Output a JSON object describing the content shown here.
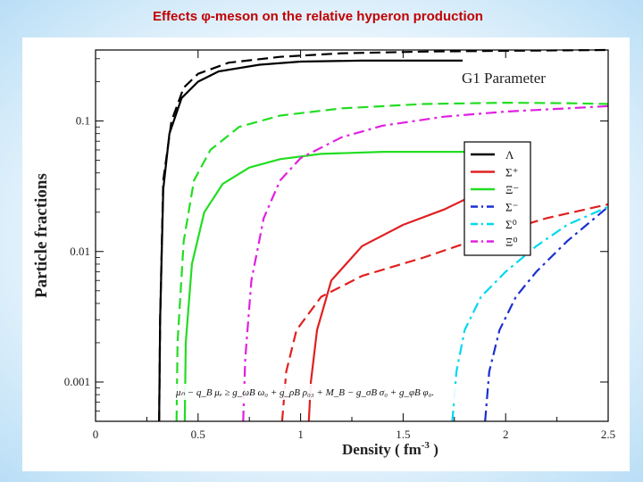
{
  "slide": {
    "title": "Effects φ-meson on the relative hyperon production"
  },
  "chart_data": {
    "type": "line",
    "ylabel": "Particle fractions",
    "xlabel_main": "Density ( fm",
    "xlabel_exp": "-3",
    "xlabel_end": " )",
    "parameter_label": "G1 Parameter",
    "equation": "μₙ − q_B μₑ ≥ g_ωB ω₀ + g_ρB ρ₀₃ + M_B − g_σB σ₀ + g_φB φ₀.",
    "xlim": [
      0,
      2.5
    ],
    "ylim": [
      0.0005,
      0.35
    ],
    "y_log": true,
    "x_ticks": [
      0,
      0.5,
      1,
      1.5,
      2,
      2.5
    ],
    "x_tick_labels": [
      "0",
      "0.5",
      "1",
      "1.5",
      "2",
      "2.5"
    ],
    "y_ticks": [
      0.001,
      0.01,
      0.1
    ],
    "y_tick_labels": [
      "0.001",
      "0.01",
      "0.1"
    ],
    "legend_position": "right",
    "grid": false,
    "series": [
      {
        "name": "Λ",
        "color": "#000000",
        "dash": "solid",
        "points": [
          [
            0.31,
            0.0005
          ],
          [
            0.315,
            0.003
          ],
          [
            0.33,
            0.03
          ],
          [
            0.36,
            0.08
          ],
          [
            0.42,
            0.15
          ],
          [
            0.5,
            0.2
          ],
          [
            0.6,
            0.24
          ],
          [
            0.8,
            0.27
          ],
          [
            1.0,
            0.285
          ],
          [
            1.3,
            0.29
          ],
          [
            1.79,
            0.29
          ]
        ]
      },
      {
        "name": "Λ",
        "color": "#000000",
        "dash": "dashed",
        "points": [
          [
            0.31,
            0.0005
          ],
          [
            0.315,
            0.003
          ],
          [
            0.33,
            0.035
          ],
          [
            0.37,
            0.1
          ],
          [
            0.43,
            0.18
          ],
          [
            0.5,
            0.23
          ],
          [
            0.65,
            0.28
          ],
          [
            0.9,
            0.31
          ],
          [
            1.2,
            0.33
          ],
          [
            1.6,
            0.34
          ],
          [
            2.0,
            0.345
          ],
          [
            2.5,
            0.35
          ]
        ]
      },
      {
        "name": "Σ⁺",
        "color": "#e02020",
        "dash": "solid",
        "points": [
          [
            1.04,
            0.0005
          ],
          [
            1.05,
            0.001
          ],
          [
            1.08,
            0.0025
          ],
          [
            1.15,
            0.006
          ],
          [
            1.3,
            0.011
          ],
          [
            1.5,
            0.016
          ],
          [
            1.7,
            0.021
          ],
          [
            1.8,
            0.025
          ]
        ]
      },
      {
        "name": "Σ⁺",
        "color": "#e02020",
        "dash": "dashed",
        "points": [
          [
            0.91,
            0.0005
          ],
          [
            0.93,
            0.0012
          ],
          [
            0.98,
            0.0025
          ],
          [
            1.1,
            0.0045
          ],
          [
            1.3,
            0.0065
          ],
          [
            1.6,
            0.009
          ],
          [
            1.9,
            0.013
          ],
          [
            2.2,
            0.018
          ],
          [
            2.5,
            0.023
          ]
        ]
      },
      {
        "name": "Ξ⁻",
        "color": "#22dd22",
        "dash": "solid",
        "points": [
          [
            0.435,
            0.0005
          ],
          [
            0.44,
            0.002
          ],
          [
            0.47,
            0.008
          ],
          [
            0.53,
            0.02
          ],
          [
            0.62,
            0.033
          ],
          [
            0.75,
            0.044
          ],
          [
            0.9,
            0.051
          ],
          [
            1.1,
            0.056
          ],
          [
            1.4,
            0.058
          ],
          [
            1.8,
            0.058
          ]
        ]
      },
      {
        "name": "Ξ⁻",
        "color": "#22dd22",
        "dash": "dashed",
        "points": [
          [
            0.395,
            0.0005
          ],
          [
            0.4,
            0.002
          ],
          [
            0.43,
            0.012
          ],
          [
            0.48,
            0.035
          ],
          [
            0.56,
            0.06
          ],
          [
            0.7,
            0.09
          ],
          [
            0.9,
            0.11
          ],
          [
            1.2,
            0.125
          ],
          [
            1.6,
            0.135
          ],
          [
            2.0,
            0.138
          ],
          [
            2.3,
            0.137
          ],
          [
            2.5,
            0.135
          ]
        ]
      },
      {
        "name": "Σ⁻",
        "color": "#1a2fd0",
        "dash": "dashdot",
        "points": [
          [
            1.9,
            0.0005
          ],
          [
            1.92,
            0.0012
          ],
          [
            1.97,
            0.0025
          ],
          [
            2.05,
            0.0045
          ],
          [
            2.15,
            0.007
          ],
          [
            2.3,
            0.012
          ],
          [
            2.5,
            0.022
          ]
        ]
      },
      {
        "name": "Σ⁰",
        "color": "#00d8f0",
        "dash": "dashdot",
        "points": [
          [
            1.74,
            0.0005
          ],
          [
            1.76,
            0.0012
          ],
          [
            1.8,
            0.0025
          ],
          [
            1.88,
            0.0045
          ],
          [
            2.0,
            0.007
          ],
          [
            2.15,
            0.011
          ],
          [
            2.3,
            0.016
          ],
          [
            2.5,
            0.022
          ]
        ]
      },
      {
        "name": "Ξ⁰",
        "color": "#e020e0",
        "dash": "dashdot",
        "points": [
          [
            0.72,
            0.0005
          ],
          [
            0.73,
            0.0015
          ],
          [
            0.76,
            0.006
          ],
          [
            0.82,
            0.018
          ],
          [
            0.9,
            0.035
          ],
          [
            1.0,
            0.052
          ],
          [
            1.2,
            0.075
          ],
          [
            1.4,
            0.092
          ],
          [
            1.7,
            0.108
          ],
          [
            2.0,
            0.118
          ],
          [
            2.3,
            0.125
          ],
          [
            2.5,
            0.13
          ]
        ]
      }
    ],
    "legend": [
      {
        "label": "Λ",
        "color": "#000000",
        "dash": "solid"
      },
      {
        "label": "Σ⁺",
        "color": "#e02020",
        "dash": "solid"
      },
      {
        "label": "Ξ⁻",
        "color": "#22dd22",
        "dash": "solid"
      },
      {
        "label": "Σ⁻",
        "color": "#1a2fd0",
        "dash": "dashdot"
      },
      {
        "label": "Σ⁰",
        "color": "#00d8f0",
        "dash": "dashdot"
      },
      {
        "label": "Ξ⁰",
        "color": "#e020e0",
        "dash": "dashdot"
      }
    ]
  }
}
